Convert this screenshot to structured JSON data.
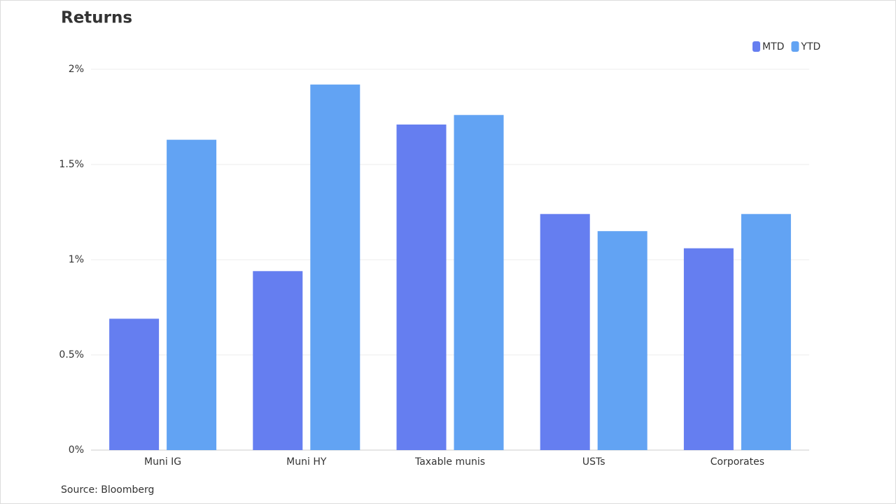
{
  "chart_data": {
    "type": "bar",
    "title": "Returns",
    "source": "Source: Bloomberg",
    "categories": [
      "Muni IG",
      "Muni HY",
      "Taxable munis",
      "USTs",
      "Corporates"
    ],
    "series": [
      {
        "name": "MTD",
        "color": "#657ef0",
        "values": [
          0.69,
          0.94,
          1.71,
          1.24,
          1.06
        ]
      },
      {
        "name": "YTD",
        "color": "#62a3f3",
        "values": [
          1.63,
          1.92,
          1.76,
          1.15,
          1.24
        ]
      }
    ],
    "ylim": [
      0,
      2
    ],
    "yticks": [
      {
        "value": 0,
        "label": "0%"
      },
      {
        "value": 0.5,
        "label": "0.5%"
      },
      {
        "value": 1,
        "label": "1%"
      },
      {
        "value": 1.5,
        "label": "1.5%"
      },
      {
        "value": 2,
        "label": "2%"
      }
    ],
    "grid": true,
    "legend": "top-right"
  }
}
